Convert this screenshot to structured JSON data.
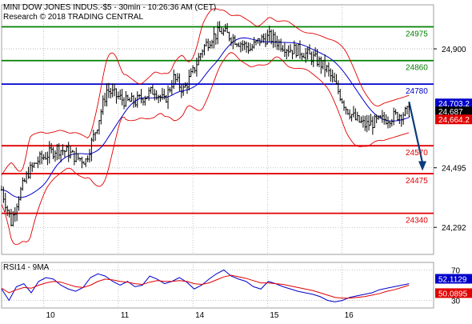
{
  "header": {
    "title": "MINI DOW JONES INDUS.-$5 - 30min - 10:26:36 AM (CET)",
    "subtitle": "Research © 2018 TRADING CENTRAL"
  },
  "colors": {
    "resistance": "#008000",
    "pivot": "#0000cc",
    "support": "#e00000",
    "candle": "#000000",
    "bollinger": "#e00000",
    "moving_average": "#0000cc",
    "arrow": "#0a3a7a",
    "grid": "#b0b0b0",
    "rsi": "#0000cc",
    "rsi_ma": "#e00000"
  },
  "chart_data": [
    {
      "type": "line",
      "subtype": "candlestick",
      "title": "MINI DOW JONES INDUS.-$5 - 30min - 10:26:36 AM (CET)",
      "ylim": [
        24200,
        25050
      ],
      "x_tick_labels": [
        "10",
        "11",
        "14",
        "15",
        "16"
      ],
      "y_tick_labels": [
        "24,900",
        "24,495",
        "24,292"
      ],
      "y_ticks": [
        24900,
        24495,
        24292
      ],
      "grid": true,
      "levels": [
        {
          "label": "24975",
          "value": 24975,
          "kind": "resistance"
        },
        {
          "label": "24860",
          "value": 24860,
          "kind": "resistance"
        },
        {
          "label": "24780",
          "value": 24780,
          "kind": "pivot"
        },
        {
          "label": "24570",
          "value": 24570,
          "kind": "support"
        },
        {
          "label": "24475",
          "value": 24475,
          "kind": "support"
        },
        {
          "label": "24340",
          "value": 24340,
          "kind": "support"
        }
      ],
      "price_tags": [
        {
          "label": "24,703.2",
          "value": 24703.2,
          "kind": "ma"
        },
        {
          "label": "24,687",
          "value": 24687,
          "kind": "last"
        },
        {
          "label": "24,664.2",
          "value": 24664.2,
          "kind": "band"
        }
      ],
      "close_path": [
        [
          0,
          24420
        ],
        [
          5,
          24310
        ],
        [
          9,
          24400
        ],
        [
          14,
          24480
        ],
        [
          19,
          24520
        ],
        [
          24,
          24540
        ],
        [
          29,
          24560
        ],
        [
          34,
          24550
        ],
        [
          39,
          24530
        ],
        [
          44,
          24520
        ],
        [
          50,
          24640
        ],
        [
          55,
          24760
        ],
        [
          60,
          24740
        ],
        [
          65,
          24720
        ],
        [
          70,
          24720
        ],
        [
          75,
          24740
        ],
        [
          80,
          24760
        ],
        [
          85,
          24720
        ],
        [
          90,
          24800
        ],
        [
          95,
          24760
        ],
        [
          100,
          24820
        ],
        [
          105,
          24900
        ],
        [
          110,
          24940
        ],
        [
          115,
          24960
        ],
        [
          120,
          24940
        ],
        [
          125,
          24920
        ],
        [
          130,
          24900
        ],
        [
          135,
          24930
        ],
        [
          140,
          24940
        ],
        [
          145,
          24920
        ],
        [
          150,
          24900
        ],
        [
          155,
          24895
        ],
        [
          160,
          24880
        ],
        [
          165,
          24860
        ],
        [
          170,
          24830
        ],
        [
          175,
          24770
        ],
        [
          180,
          24700
        ],
        [
          185,
          24660
        ],
        [
          190,
          24640
        ],
        [
          195,
          24650
        ],
        [
          200,
          24660
        ],
        [
          205,
          24670
        ],
        [
          210,
          24680
        ],
        [
          213,
          24687
        ]
      ],
      "forecast_arrow": {
        "from": [
          213,
          24720
        ],
        "to": [
          220,
          24490
        ]
      }
    },
    {
      "type": "line",
      "title": "RSI14 - 9MA",
      "ylim": [
        20,
        80
      ],
      "y_ticks": [
        70,
        30
      ],
      "y_tick_labels": [
        "70",
        "30"
      ],
      "grid": true,
      "current_tags": [
        {
          "label": "52.1129",
          "value": 52.1129,
          "kind": "rsi"
        },
        {
          "label": "50.0895",
          "value": 50.0895,
          "kind": "ma"
        }
      ],
      "series": [
        {
          "values": [
            45,
            30,
            48,
            52,
            40,
            55,
            60,
            58,
            50,
            45,
            42,
            47,
            60,
            65,
            62,
            55,
            50,
            55,
            48,
            50,
            62,
            58,
            52,
            55,
            60,
            54,
            45,
            50,
            58,
            65,
            70,
            62,
            58,
            55,
            48,
            45,
            55,
            52,
            48,
            45,
            42,
            40,
            38,
            35,
            30,
            28,
            30,
            34,
            36,
            38,
            40,
            44,
            46,
            48,
            50,
            52
          ]
        },
        {
          "values": [
            46,
            40,
            44,
            47,
            46,
            50,
            53,
            55,
            54,
            51,
            48,
            47,
            50,
            55,
            58,
            57,
            55,
            54,
            52,
            51,
            54,
            56,
            55,
            55,
            56,
            55,
            52,
            51,
            53,
            57,
            61,
            63,
            61,
            59,
            56,
            53,
            53,
            52,
            51,
            49,
            47,
            45,
            43,
            40,
            37,
            34,
            33,
            33,
            34,
            35,
            37,
            39,
            42,
            44,
            47,
            50
          ]
        }
      ]
    }
  ]
}
